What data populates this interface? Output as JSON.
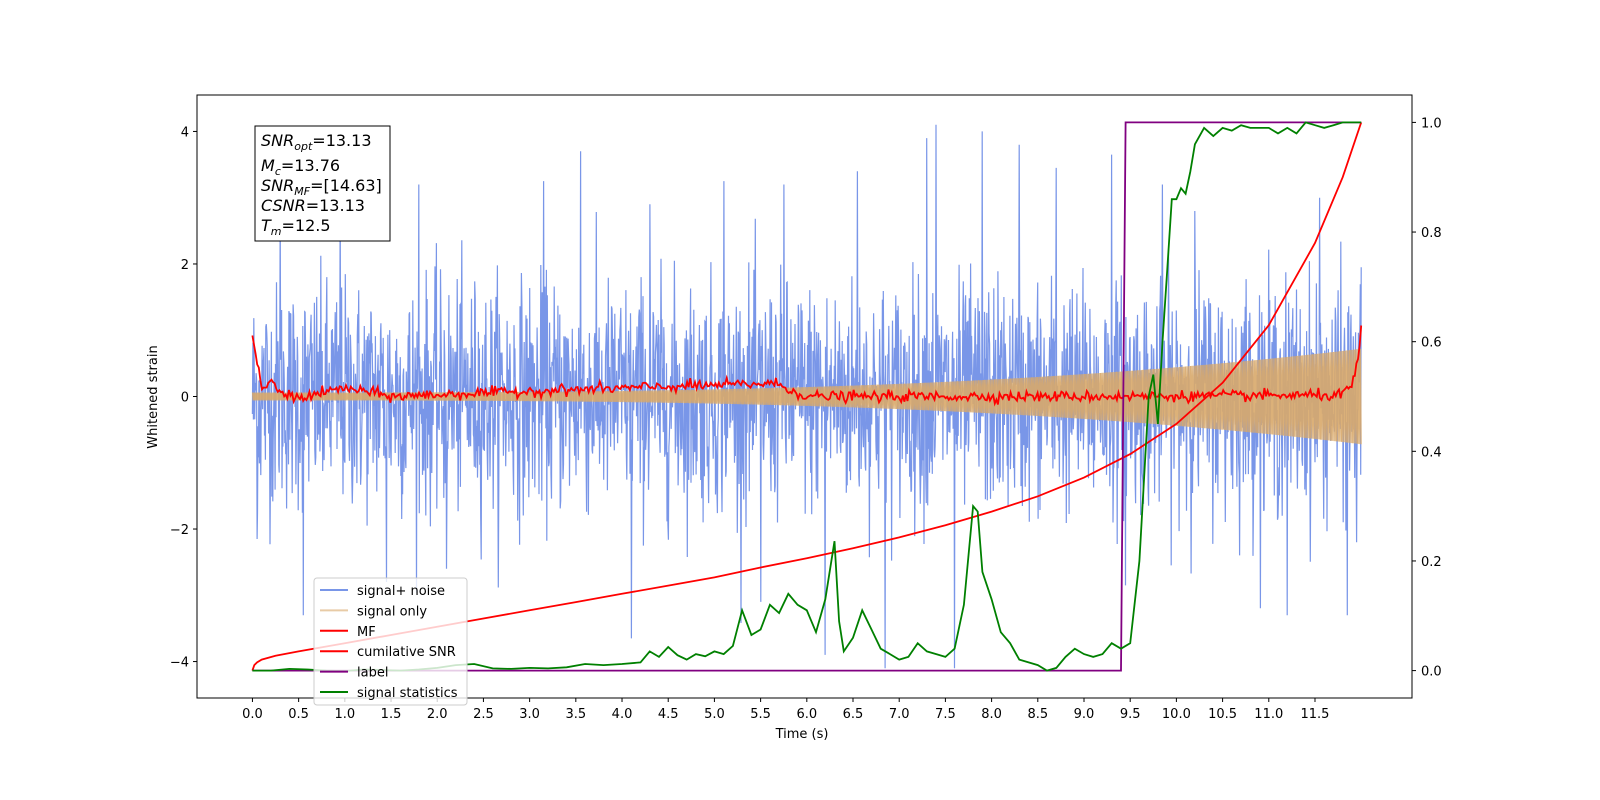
{
  "colors": {
    "signal_noise": "#6a8be6",
    "signal_only": "#d8a86a",
    "mf": "#ff0000",
    "cumulative_snr": "#ff0000",
    "label": "#800080",
    "signal_statistics": "#008000"
  },
  "annotation": {
    "snr_opt": {
      "name": "SNR",
      "sub": "opt",
      "value": "=13.13"
    },
    "mc": {
      "name": "M",
      "sub": "c",
      "value": "=13.76"
    },
    "snr_mf": {
      "name": "SNR",
      "sub": "MF",
      "value": "=[14.63]"
    },
    "csnr": {
      "name": "CSNR",
      "sub": "",
      "value": "=13.13"
    },
    "tm": {
      "name": "T",
      "sub": "m",
      "value": "=12.5"
    }
  },
  "chart_data": {
    "type": "line",
    "xlabel": "Time (s)",
    "ylabel": "Whitened strain",
    "xlim": [
      -0.6,
      12.55
    ],
    "ylim": [
      -4.55,
      4.55
    ],
    "y2lim": [
      -0.05,
      1.05
    ],
    "x_ticks": [
      "0.0",
      "0.5",
      "1.0",
      "1.5",
      "2.0",
      "2.5",
      "3.0",
      "3.5",
      "4.0",
      "4.5",
      "5.0",
      "5.5",
      "6.0",
      "6.5",
      "7.0",
      "7.5",
      "8.0",
      "8.5",
      "9.0",
      "9.5",
      "10.0",
      "10.5",
      "11.0",
      "11.5"
    ],
    "y_ticks": [
      "−4",
      "−2",
      "0",
      "2",
      "4"
    ],
    "y2_ticks": [
      "0.0",
      "0.2",
      "0.4",
      "0.6",
      "0.8",
      "1.0"
    ],
    "grid": false,
    "legend_position": "lower-left",
    "legend": [
      "signal+ noise",
      "signal only",
      "MF",
      "cumilative SNR",
      "label",
      "signal statistics"
    ],
    "series": [
      {
        "name": "signal+ noise",
        "axis": "left",
        "style": "noise",
        "x_range": [
          0.0,
          12.0
        ],
        "std": 0.85,
        "peaks": [
          [
            0.05,
            -2.15
          ],
          [
            0.3,
            2.9
          ],
          [
            0.55,
            -3.3
          ],
          [
            0.95,
            3.1
          ],
          [
            1.45,
            -2.8
          ],
          [
            1.8,
            3.2
          ],
          [
            2.1,
            -2.6
          ],
          [
            3.15,
            3.25
          ],
          [
            3.55,
            3.7
          ],
          [
            4.1,
            -3.65
          ],
          [
            4.3,
            2.9
          ],
          [
            5.1,
            3.25
          ],
          [
            5.5,
            -3.1
          ],
          [
            5.75,
            3.2
          ],
          [
            6.2,
            -3.9
          ],
          [
            6.55,
            3.4
          ],
          [
            6.85,
            -4.1
          ],
          [
            7.3,
            3.9
          ],
          [
            7.4,
            4.1
          ],
          [
            7.6,
            -4.1
          ],
          [
            7.9,
            4.0
          ],
          [
            8.3,
            3.8
          ],
          [
            8.7,
            3.45
          ],
          [
            9.3,
            3.65
          ],
          [
            9.45,
            -2.85
          ],
          [
            9.85,
            3.2
          ],
          [
            10.2,
            2.8
          ],
          [
            11.2,
            -3.3
          ],
          [
            11.55,
            3.0
          ],
          [
            11.85,
            -3.3
          ],
          [
            11.95,
            -2.2
          ],
          [
            12.0,
            1.95
          ]
        ]
      },
      {
        "name": "signal only",
        "axis": "left",
        "style": "chirp",
        "x_range": [
          0.0,
          12.0
        ],
        "amp_start": 0.06,
        "amp_end": 0.72
      },
      {
        "name": "MF",
        "axis": "left",
        "style": "jitter",
        "x_range": [
          0.0,
          12.0
        ],
        "std": 0.04,
        "points": [
          [
            0.0,
            1.0
          ],
          [
            0.05,
            0.5
          ],
          [
            0.1,
            0.12
          ],
          [
            0.2,
            0.2
          ],
          [
            0.35,
            0.02
          ],
          [
            0.5,
            -0.02
          ],
          [
            1.0,
            0.13
          ],
          [
            1.5,
            0.0
          ],
          [
            3.0,
            0.08
          ],
          [
            5.65,
            0.2
          ],
          [
            6.0,
            0.0
          ],
          [
            9.0,
            0.0
          ],
          [
            11.8,
            0.02
          ],
          [
            11.9,
            0.18
          ],
          [
            11.97,
            0.55
          ],
          [
            12.0,
            1.0
          ]
        ]
      },
      {
        "name": "cumilative SNR",
        "axis": "right",
        "style": "line",
        "x": [
          0.0,
          0.02,
          0.05,
          0.1,
          0.25,
          0.5,
          1.0,
          1.5,
          2.0,
          2.5,
          3.0,
          3.5,
          4.0,
          4.5,
          5.0,
          5.5,
          6.0,
          6.5,
          7.0,
          7.5,
          8.0,
          8.5,
          9.0,
          9.5,
          10.0,
          10.5,
          11.0,
          11.5,
          11.8,
          12.0
        ],
        "values": [
          0.0,
          0.01,
          0.015,
          0.02,
          0.027,
          0.035,
          0.05,
          0.065,
          0.08,
          0.095,
          0.11,
          0.125,
          0.14,
          0.155,
          0.17,
          0.188,
          0.205,
          0.223,
          0.243,
          0.265,
          0.29,
          0.318,
          0.352,
          0.395,
          0.45,
          0.525,
          0.63,
          0.78,
          0.9,
          1.0
        ]
      },
      {
        "name": "label",
        "axis": "right",
        "style": "line",
        "x": [
          0.0,
          9.4,
          9.45,
          12.0
        ],
        "values": [
          0.0,
          0.0,
          1.0,
          1.0
        ]
      },
      {
        "name": "signal statistics",
        "axis": "right",
        "style": "line",
        "x": [
          0.0,
          0.2,
          0.4,
          0.6,
          0.8,
          1.0,
          1.2,
          1.4,
          1.6,
          1.8,
          2.0,
          2.2,
          2.4,
          2.6,
          2.8,
          3.0,
          3.2,
          3.4,
          3.6,
          3.8,
          4.0,
          4.2,
          4.3,
          4.4,
          4.5,
          4.6,
          4.7,
          4.8,
          4.9,
          5.0,
          5.1,
          5.2,
          5.3,
          5.4,
          5.5,
          5.6,
          5.7,
          5.8,
          5.9,
          6.0,
          6.1,
          6.2,
          6.3,
          6.35,
          6.4,
          6.5,
          6.6,
          6.7,
          6.8,
          6.9,
          7.0,
          7.1,
          7.2,
          7.3,
          7.4,
          7.5,
          7.6,
          7.7,
          7.8,
          7.85,
          7.9,
          8.0,
          8.1,
          8.2,
          8.3,
          8.4,
          8.5,
          8.6,
          8.7,
          8.8,
          8.9,
          9.0,
          9.1,
          9.2,
          9.3,
          9.4,
          9.5,
          9.6,
          9.7,
          9.75,
          9.8,
          9.85,
          9.9,
          9.95,
          10.0,
          10.05,
          10.1,
          10.15,
          10.2,
          10.3,
          10.4,
          10.5,
          10.6,
          10.7,
          10.8,
          10.9,
          11.0,
          11.1,
          11.2,
          11.3,
          11.4,
          11.5,
          11.6,
          11.7,
          11.8,
          11.9,
          12.0
        ],
        "values": [
          0.0,
          0.0,
          0.003,
          0.002,
          0.0,
          -0.001,
          0.002,
          0.001,
          0.0,
          0.002,
          0.005,
          0.01,
          0.012,
          0.004,
          0.003,
          0.005,
          0.004,
          0.006,
          0.012,
          0.01,
          0.012,
          0.015,
          0.035,
          0.025,
          0.043,
          0.028,
          0.02,
          0.03,
          0.026,
          0.035,
          0.03,
          0.045,
          0.11,
          0.065,
          0.075,
          0.12,
          0.105,
          0.14,
          0.12,
          0.11,
          0.07,
          0.13,
          0.236,
          0.09,
          0.035,
          0.06,
          0.11,
          0.075,
          0.04,
          0.03,
          0.02,
          0.025,
          0.05,
          0.035,
          0.03,
          0.025,
          0.04,
          0.12,
          0.3,
          0.29,
          0.18,
          0.13,
          0.07,
          0.05,
          0.02,
          0.015,
          0.01,
          0.0,
          0.005,
          0.025,
          0.04,
          0.03,
          0.025,
          0.03,
          0.05,
          0.04,
          0.05,
          0.2,
          0.5,
          0.54,
          0.45,
          0.6,
          0.73,
          0.86,
          0.86,
          0.88,
          0.87,
          0.91,
          0.96,
          0.99,
          0.975,
          0.99,
          0.985,
          0.995,
          0.99,
          0.99,
          0.99,
          0.98,
          0.99,
          0.98,
          1.0,
          0.995,
          0.99,
          0.995,
          1.0,
          1.0,
          1.0
        ]
      }
    ]
  }
}
